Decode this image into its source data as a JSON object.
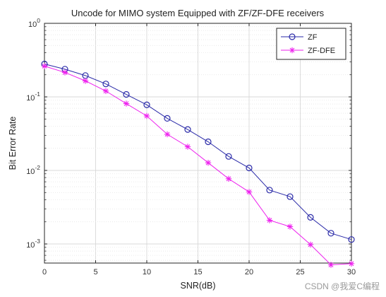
{
  "chart_data": {
    "type": "line",
    "title": "Uncode for MIMO system Equipped with ZF/ZF-DFE receivers",
    "xlabel": "SNR(dB)",
    "ylabel": "Bit Error Rate",
    "xlim": [
      0,
      30
    ],
    "ylim": [
      0.00055,
      1
    ],
    "y_scale": "log",
    "grid": true,
    "legend_position": "top-right",
    "x_ticks": [
      0,
      5,
      10,
      15,
      20,
      25,
      30
    ],
    "y_ticks": [
      {
        "value": 1,
        "base": "10",
        "exp": "0"
      },
      {
        "value": 0.1,
        "base": "10",
        "exp": "-1"
      },
      {
        "value": 0.01,
        "base": "10",
        "exp": "-2"
      },
      {
        "value": 0.001,
        "base": "10",
        "exp": "-3"
      }
    ],
    "x": [
      0,
      2,
      4,
      6,
      8,
      10,
      12,
      14,
      16,
      18,
      20,
      22,
      24,
      26,
      28,
      30
    ],
    "series": [
      {
        "name": "ZF",
        "color": "#2a2aa8",
        "marker": "circle",
        "values": [
          0.28,
          0.238,
          0.195,
          0.15,
          0.108,
          0.078,
          0.051,
          0.036,
          0.0245,
          0.0155,
          0.0108,
          0.0054,
          0.0044,
          0.0023,
          0.0014,
          0.00115
        ]
      },
      {
        "name": "ZF-DFE",
        "color": "#ee22ee",
        "marker": "asterisk",
        "values": [
          0.262,
          0.215,
          0.165,
          0.12,
          0.081,
          0.055,
          0.031,
          0.021,
          0.0127,
          0.0077,
          0.0051,
          0.0021,
          0.00172,
          0.00098,
          0.00052,
          0.00054
        ]
      }
    ]
  },
  "watermark": "CSDN @我爱C编程"
}
